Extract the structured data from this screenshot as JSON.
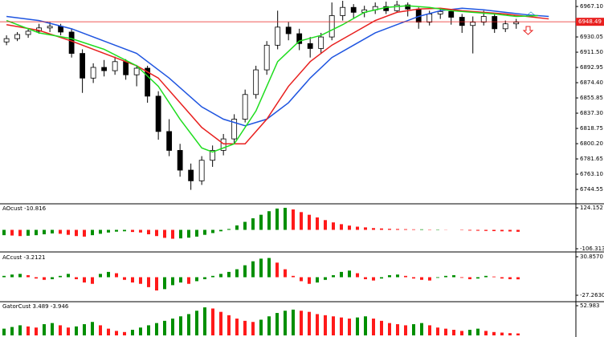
{
  "chart_data": [
    {
      "type": "candlestick",
      "open": [
        6924,
        6928,
        6933,
        6937,
        6941,
        6943,
        6936,
        6910,
        6880,
        6893,
        6889,
        6900,
        6884,
        6892,
        6858,
        6815,
        6792,
        6768,
        6755,
        6780,
        6792,
        6806,
        6830,
        6860,
        6890,
        6920,
        6942,
        6934,
        6922,
        6916,
        6930,
        6956,
        6966,
        6960,
        6963,
        6967,
        6962,
        6969,
        6964,
        6948,
        6958,
        6961,
        6954,
        6944,
        6948,
        6955,
        6940,
        6946
      ],
      "high": [
        6932,
        6936,
        6940,
        6946,
        6948,
        6946,
        6940,
        6915,
        6898,
        6902,
        6906,
        6903,
        6896,
        6895,
        6864,
        6830,
        6800,
        6776,
        6785,
        6798,
        6812,
        6836,
        6866,
        6895,
        6925,
        6962,
        6948,
        6940,
        6930,
        6935,
        6972,
        6974,
        6970,
        6968,
        6972,
        6973,
        6974,
        6972,
        6966,
        6962,
        6965,
        6964,
        6958,
        6955,
        6962,
        6958,
        6950,
        6952
      ],
      "low": [
        6920,
        6925,
        6929,
        6934,
        6936,
        6932,
        6905,
        6862,
        6874,
        6882,
        6884,
        6878,
        6870,
        6850,
        6805,
        6785,
        6760,
        6744,
        6750,
        6772,
        6786,
        6800,
        6826,
        6855,
        6884,
        6915,
        6926,
        6914,
        6905,
        6910,
        6926,
        6950,
        6952,
        6954,
        6958,
        6958,
        6960,
        6955,
        6940,
        6944,
        6952,
        6945,
        6935,
        6910,
        6944,
        6935,
        6936,
        6940
      ],
      "close": [
        6928,
        6933,
        6937,
        6941,
        6943,
        6936,
        6910,
        6880,
        6893,
        6889,
        6900,
        6884,
        6892,
        6858,
        6815,
        6792,
        6768,
        6755,
        6780,
        6792,
        6806,
        6830,
        6860,
        6890,
        6920,
        6942,
        6934,
        6922,
        6916,
        6930,
        6956,
        6966,
        6960,
        6963,
        6967,
        6962,
        6969,
        6964,
        6948,
        6958,
        6961,
        6954,
        6944,
        6948,
        6955,
        6940,
        6946,
        6948
      ],
      "up_color": "#ffffff",
      "down_color": "#000000",
      "lines": [
        {
          "color": "#1f55e0",
          "x": [
            0,
            3,
            6,
            9,
            12,
            15,
            18,
            20,
            22,
            24,
            26,
            28,
            30,
            32,
            34,
            36,
            38,
            40,
            42,
            44,
            46,
            48,
            50
          ],
          "values": [
            6955,
            6950,
            6940,
            6925,
            6910,
            6880,
            6845,
            6830,
            6822,
            6830,
            6850,
            6880,
            6905,
            6920,
            6935,
            6945,
            6955,
            6962,
            6965,
            6963,
            6960,
            6957,
            6955
          ]
        },
        {
          "color": "#e8201f",
          "x": [
            0,
            3,
            6,
            9,
            12,
            14,
            16,
            18,
            20,
            22,
            24,
            26,
            28,
            30,
            32,
            34,
            36,
            38,
            40,
            42,
            44,
            46,
            48,
            50
          ],
          "values": [
            6945,
            6938,
            6925,
            6910,
            6895,
            6880,
            6850,
            6820,
            6800,
            6800,
            6830,
            6870,
            6900,
            6920,
            6935,
            6950,
            6960,
            6964,
            6965,
            6962,
            6960,
            6958,
            6955,
            6952
          ]
        },
        {
          "color": "#1fdd1f",
          "x": [
            0,
            3,
            6,
            9,
            12,
            14,
            16,
            18,
            19,
            21,
            23,
            25,
            27,
            29,
            31,
            33,
            35,
            37,
            39,
            41,
            43,
            45,
            47,
            49
          ],
          "values": [
            6950,
            6935,
            6928,
            6915,
            6895,
            6870,
            6830,
            6795,
            6790,
            6800,
            6840,
            6900,
            6925,
            6932,
            6945,
            6960,
            6966,
            6968,
            6966,
            6962,
            6960,
            6958,
            6955,
            6956
          ]
        }
      ],
      "current_price": 6948.49,
      "current_color": "#e8201f",
      "xlim": [
        -0.6,
        52.5
      ],
      "ylim": [
        6728,
        6975
      ],
      "yticks": [
        {
          "value": 6744.55,
          "label": "6744.55"
        },
        {
          "value": 6763.1,
          "label": "6763.10"
        },
        6781.65,
        {
          "value": 6800.2,
          "label": "6800.20"
        },
        6818.75,
        {
          "value": 6837.3,
          "label": "6837.30"
        },
        6855.85,
        {
          "value": 6874.4,
          "label": "6874.40"
        },
        6892.95,
        {
          "value": 6911.5,
          "label": "6911.50"
        },
        6930.05,
        {
          "value": 6967.1,
          "label": "6967.10"
        }
      ]
    },
    {
      "type": "bar",
      "title": "AOcust -10.816",
      "up_color": "#008f00",
      "down_color": "#ff1a1a",
      "values": [
        -30,
        -32,
        -35,
        -33,
        -30,
        -25,
        -20,
        -22,
        -28,
        -35,
        -38,
        -30,
        -22,
        -15,
        -10,
        -8,
        -12,
        -15,
        -25,
        -35,
        -45,
        -50,
        -48,
        -44,
        -38,
        -28,
        -18,
        -8,
        5,
        25,
        45,
        65,
        85,
        105,
        120,
        124,
        115,
        100,
        85,
        70,
        55,
        42,
        32,
        24,
        18,
        14,
        10,
        8,
        6,
        5,
        4,
        3,
        3,
        2,
        2,
        1,
        0,
        -2,
        -4,
        -5,
        -6,
        -7,
        -8,
        -9,
        -10.816
      ],
      "xlim": [
        -0.5,
        71.2
      ],
      "ylim": [
        -106.313,
        124.152
      ],
      "yticks": [
        -106.313,
        124.152
      ]
    },
    {
      "type": "bar",
      "title": "ACcust -3.2121",
      "up_color": "#008f00",
      "down_color": "#ff1a1a",
      "values": [
        2,
        4,
        5,
        3,
        -2,
        -4,
        -3,
        2,
        5,
        -3,
        -8,
        -10,
        5,
        8,
        6,
        -4,
        -8,
        -10,
        -15,
        -20,
        -18,
        -12,
        -8,
        -10,
        -6,
        -3,
        2,
        5,
        8,
        12,
        18,
        24,
        28,
        29,
        22,
        12,
        2,
        -6,
        -10,
        -8,
        -4,
        3,
        8,
        10,
        6,
        -3,
        -5,
        -2,
        3,
        4,
        2,
        -2,
        -4,
        -5,
        -1,
        2,
        3,
        -1,
        -3,
        -2,
        2,
        1,
        -2,
        -3,
        -3.2121
      ],
      "xlim": [
        -0.5,
        71.2
      ],
      "ylim": [
        -27.263,
        30.857
      ],
      "yticks": [
        {
          "value": -27.263,
          "label": "-27.2630"
        },
        {
          "value": 30.857,
          "label": "30.8570"
        }
      ]
    },
    {
      "type": "bar",
      "title": "GatorCust 3.489 -3.946",
      "up_color": "#008f00",
      "down_color": "#ff1a1a",
      "values": [
        12,
        15,
        18,
        16,
        14,
        20,
        22,
        18,
        14,
        16,
        20,
        24,
        18,
        12,
        8,
        6,
        10,
        14,
        18,
        22,
        26,
        30,
        34,
        38,
        44,
        50,
        48,
        42,
        36,
        30,
        26,
        24,
        28,
        34,
        40,
        44,
        46,
        44,
        42,
        38,
        36,
        34,
        32,
        30,
        32,
        34,
        30,
        26,
        22,
        20,
        18,
        20,
        22,
        18,
        14,
        12,
        10,
        8,
        10,
        12,
        8,
        6,
        5,
        4,
        3.489
      ],
      "xlim": [
        -0.5,
        71.2
      ],
      "ylim": [
        0,
        52.983
      ],
      "yticks": [
        52.983
      ]
    }
  ]
}
